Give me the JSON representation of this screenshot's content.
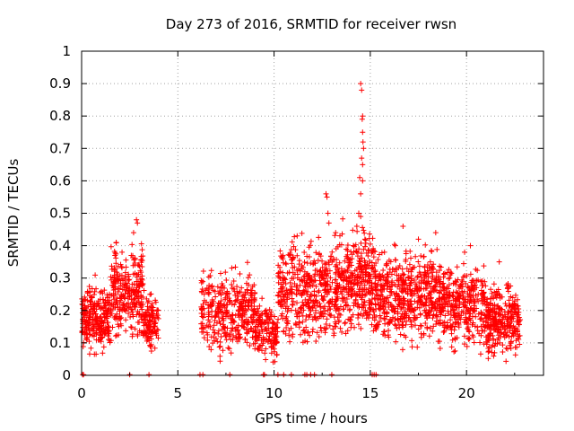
{
  "chart_data": {
    "type": "scatter",
    "title": "Day 273 of 2016, SRMTID for receiver rwsn",
    "xlabel": "GPS time / hours",
    "ylabel": "SRMTID / TECUs",
    "xlim": [
      0,
      24
    ],
    "ylim": [
      0,
      1
    ],
    "x_ticks": [
      0,
      5,
      10,
      15,
      20
    ],
    "x_tick_labels": [
      "0",
      "5",
      "10",
      "15",
      "20"
    ],
    "y_ticks": [
      0,
      0.1,
      0.2,
      0.3,
      0.4,
      0.5,
      0.6,
      0.7,
      0.8,
      0.9,
      1
    ],
    "y_tick_labels": [
      "0",
      "0.1",
      "0.2",
      "0.3",
      "0.4",
      "0.5",
      "0.6",
      "0.7",
      "0.8",
      "0.9",
      "1"
    ],
    "grid": true,
    "marker": "+",
    "color": "#ff0000",
    "series": [
      {
        "name": "SRMTID",
        "clusters": [
          {
            "x_range": [
              0.0,
              1.5
            ],
            "count": 260,
            "y_low": 0.04,
            "y_high": 0.28
          },
          {
            "x_range": [
              1.5,
              3.2
            ],
            "count": 280,
            "y_low": 0.08,
            "y_high": 0.4
          },
          {
            "x_range": [
              3.2,
              4.0
            ],
            "count": 120,
            "y_low": 0.05,
            "y_high": 0.25
          },
          {
            "x_range": [
              6.2,
              9.0
            ],
            "count": 360,
            "y_low": 0.03,
            "y_high": 0.32
          },
          {
            "x_range": [
              9.0,
              10.2
            ],
            "count": 160,
            "y_low": 0.02,
            "y_high": 0.22
          },
          {
            "x_range": [
              10.2,
              13.5
            ],
            "count": 480,
            "y_low": 0.05,
            "y_high": 0.42
          },
          {
            "x_range": [
              13.5,
              15.2
            ],
            "count": 300,
            "y_low": 0.08,
            "y_high": 0.45
          },
          {
            "x_range": [
              15.2,
              18.5
            ],
            "count": 520,
            "y_low": 0.06,
            "y_high": 0.38
          },
          {
            "x_range": [
              18.5,
              21.0
            ],
            "count": 360,
            "y_low": 0.04,
            "y_high": 0.35
          },
          {
            "x_range": [
              21.0,
              22.8
            ],
            "count": 300,
            "y_low": 0.02,
            "y_high": 0.28
          }
        ],
        "highlights": [
          {
            "x": 14.5,
            "y": 0.9
          },
          {
            "x": 14.55,
            "y": 0.88
          },
          {
            "x": 14.6,
            "y": 0.8
          },
          {
            "x": 14.58,
            "y": 0.79
          },
          {
            "x": 14.6,
            "y": 0.75
          },
          {
            "x": 14.62,
            "y": 0.72
          },
          {
            "x": 14.65,
            "y": 0.7
          },
          {
            "x": 14.55,
            "y": 0.67
          },
          {
            "x": 14.6,
            "y": 0.65
          },
          {
            "x": 14.45,
            "y": 0.61
          },
          {
            "x": 14.6,
            "y": 0.6
          },
          {
            "x": 14.5,
            "y": 0.56
          },
          {
            "x": 14.4,
            "y": 0.5
          },
          {
            "x": 14.5,
            "y": 0.49
          },
          {
            "x": 14.3,
            "y": 0.46
          },
          {
            "x": 12.7,
            "y": 0.56
          },
          {
            "x": 12.75,
            "y": 0.55
          },
          {
            "x": 12.8,
            "y": 0.5
          },
          {
            "x": 12.85,
            "y": 0.47
          },
          {
            "x": 2.85,
            "y": 0.48
          },
          {
            "x": 2.9,
            "y": 0.47
          },
          {
            "x": 2.7,
            "y": 0.44
          },
          {
            "x": 16.7,
            "y": 0.46
          },
          {
            "x": 18.4,
            "y": 0.44
          },
          {
            "x": 20.2,
            "y": 0.4
          },
          {
            "x": 21.7,
            "y": 0.35
          },
          {
            "x": 1.8,
            "y": 0.41
          },
          {
            "x": 2.1,
            "y": 0.38
          },
          {
            "x": 11.2,
            "y": 0.43
          },
          {
            "x": 13.2,
            "y": 0.44
          },
          {
            "x": 16.3,
            "y": 0.4
          },
          {
            "x": 17.5,
            "y": 0.42
          },
          {
            "x": 19.9,
            "y": 0.38
          }
        ],
        "zeros": [
          0.05,
          0.1,
          2.5,
          3.5,
          6.15,
          6.3,
          7.7,
          9.45,
          9.5,
          10.2,
          10.5,
          10.9,
          11.6,
          11.7,
          11.9,
          12.1,
          13.0,
          15.1,
          15.2,
          15.3
        ]
      }
    ]
  }
}
